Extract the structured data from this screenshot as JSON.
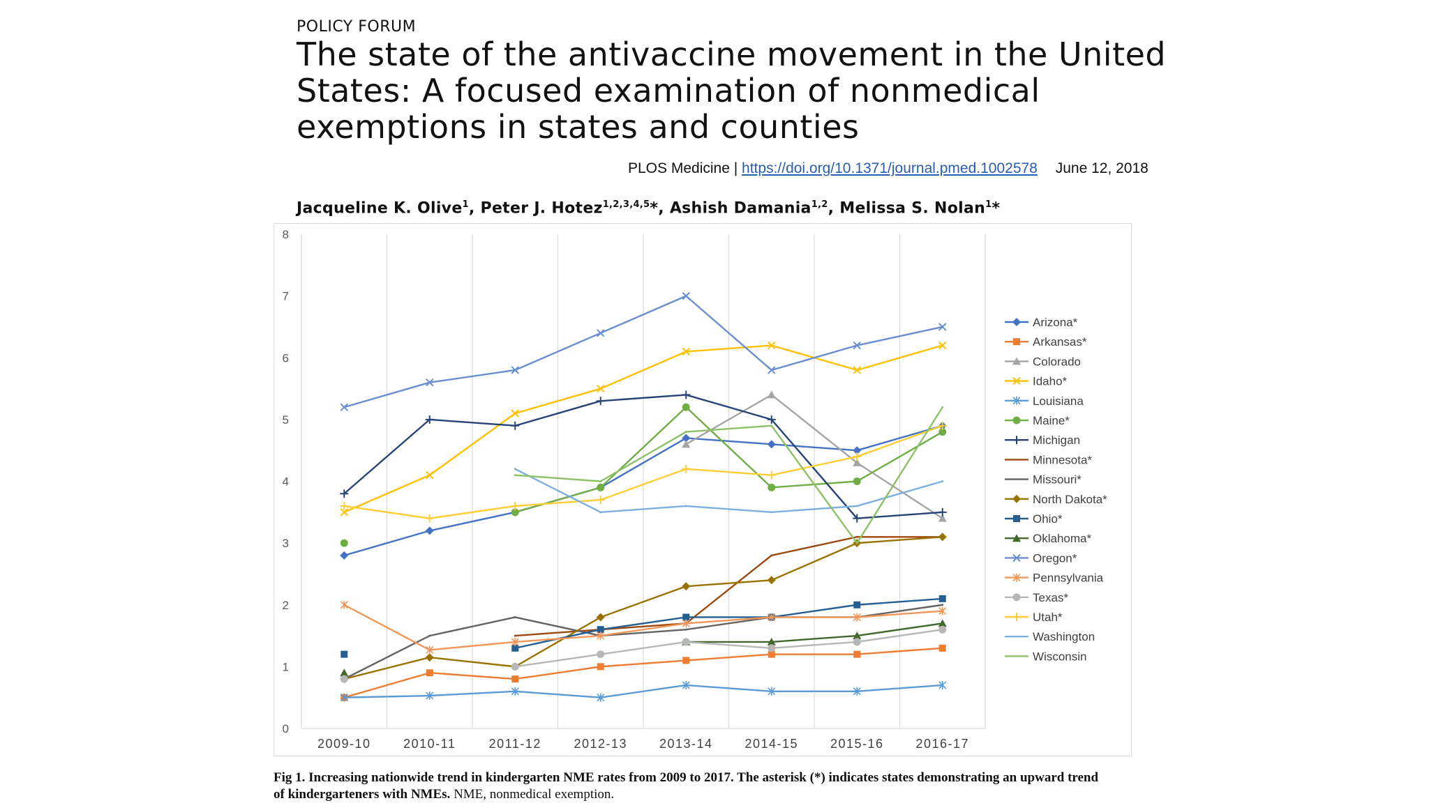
{
  "header": {
    "section": "POLICY FORUM",
    "title": "The state of the antivaccine movement in the United States: A focused examination of nonmedical exemptions in states and counties",
    "journal": "PLOS Medicine |",
    "doi": "https://doi.org/10.1371/journal.pmed.1002578",
    "date": "June 12, 2018"
  },
  "authors": [
    {
      "name": "Jacqueline K. Olive",
      "sup": "1",
      "sep": ", "
    },
    {
      "name": "Peter J. Hotez",
      "sup": "1,2,3,4,5",
      "mark": "*",
      "sep": ", "
    },
    {
      "name": "Ashish Damania",
      "sup": "1,2",
      "sep": ", "
    },
    {
      "name": "Melissa S. Nolan",
      "sup": "1",
      "mark": "*",
      "sep": ""
    }
  ],
  "caption": {
    "prefix": "Fig 1.",
    "text": "Increasing nationwide trend in kindergarten NME rates from 2009 to 2017. The asterisk (*) indicates states demonstrating an upward trend of kindergarteners with NMEs.",
    "suffix": "NME, nonmedical exemption."
  },
  "chart_data": {
    "type": "line",
    "title": "",
    "xlabel": "",
    "ylabel": "",
    "categories": [
      "2009-10",
      "2010-11",
      "2011-12",
      "2012-13",
      "2013-14",
      "2014-15",
      "2015-16",
      "2016-17"
    ],
    "ylim": [
      0,
      8
    ],
    "yticks": [
      "0",
      "1",
      "2",
      "3",
      "4",
      "5",
      "6",
      "7",
      "8"
    ],
    "legend_position": "right",
    "series": [
      {
        "name": "Arizona*",
        "color": "#4472c4",
        "marker": "diamond",
        "values": [
          2.8,
          3.2,
          3.5,
          3.9,
          4.7,
          4.6,
          4.5,
          4.9
        ]
      },
      {
        "name": "Arkansas*",
        "color": "#ed7d31",
        "marker": "square",
        "values": [
          0.5,
          0.9,
          0.8,
          1.0,
          1.1,
          1.2,
          1.2,
          1.3
        ]
      },
      {
        "name": "Colorado",
        "color": "#a5a5a5",
        "marker": "triangle",
        "values": [
          null,
          null,
          null,
          null,
          4.6,
          5.4,
          4.3,
          3.4
        ]
      },
      {
        "name": "Idaho*",
        "color": "#ffc000",
        "marker": "x",
        "values": [
          3.5,
          4.1,
          5.1,
          5.5,
          6.1,
          6.2,
          5.8,
          6.2
        ]
      },
      {
        "name": "Louisiana",
        "color": "#5b9bd5",
        "marker": "star",
        "values": [
          0.5,
          0.53,
          0.6,
          0.5,
          0.7,
          0.6,
          0.6,
          0.7
        ]
      },
      {
        "name": "Maine*",
        "color": "#70ad47",
        "marker": "circle",
        "values": [
          3.0,
          null,
          3.5,
          3.9,
          5.2,
          3.9,
          4.0,
          4.8
        ]
      },
      {
        "name": "Michigan",
        "color": "#264478",
        "marker": "plus",
        "values": [
          3.8,
          5.0,
          4.9,
          5.3,
          5.4,
          5.0,
          3.4,
          3.5
        ]
      },
      {
        "name": "Minnesota*",
        "color": "#9e480e",
        "marker": "none",
        "values": [
          null,
          null,
          1.5,
          1.6,
          1.7,
          2.8,
          3.1,
          3.1
        ]
      },
      {
        "name": "Missouri*",
        "color": "#636363",
        "marker": "none",
        "values": [
          0.8,
          1.5,
          1.8,
          1.5,
          1.6,
          1.8,
          1.8,
          2.0
        ]
      },
      {
        "name": "North Dakota*",
        "color": "#997300",
        "marker": "diamond",
        "values": [
          0.8,
          1.15,
          1.0,
          1.8,
          2.3,
          2.4,
          3.0,
          3.1
        ]
      },
      {
        "name": "Ohio*",
        "color": "#255e91",
        "marker": "square",
        "values": [
          1.2,
          null,
          1.3,
          1.6,
          1.8,
          1.8,
          2.0,
          2.1
        ]
      },
      {
        "name": "Oklahoma*",
        "color": "#43682b",
        "marker": "triangle",
        "values": [
          0.9,
          null,
          null,
          null,
          1.4,
          1.4,
          1.5,
          1.7
        ]
      },
      {
        "name": "Oregon*",
        "color": "#698ed0",
        "marker": "x",
        "values": [
          5.2,
          5.6,
          5.8,
          6.4,
          7.0,
          5.8,
          6.2,
          6.5
        ]
      },
      {
        "name": "Pennsylvania",
        "color": "#f1975a",
        "marker": "star",
        "values": [
          2.0,
          1.27,
          1.4,
          1.5,
          1.7,
          1.8,
          1.8,
          1.9
        ]
      },
      {
        "name": "Texas*",
        "color": "#b7b7b7",
        "marker": "circle",
        "values": [
          0.8,
          null,
          1.0,
          1.2,
          1.4,
          1.3,
          1.4,
          1.6
        ]
      },
      {
        "name": "Utah*",
        "color": "#ffcd33",
        "marker": "plus",
        "values": [
          3.6,
          3.4,
          3.6,
          3.7,
          4.2,
          4.1,
          4.4,
          4.9
        ]
      },
      {
        "name": "Washington",
        "color": "#7cafdd",
        "marker": "none",
        "values": [
          null,
          null,
          4.2,
          3.5,
          3.6,
          3.5,
          3.6,
          4.0
        ]
      },
      {
        "name": "Wisconsin",
        "color": "#8cc168",
        "marker": "none",
        "values": [
          null,
          null,
          4.1,
          4.0,
          4.8,
          4.9,
          3.0,
          5.2
        ]
      }
    ]
  }
}
